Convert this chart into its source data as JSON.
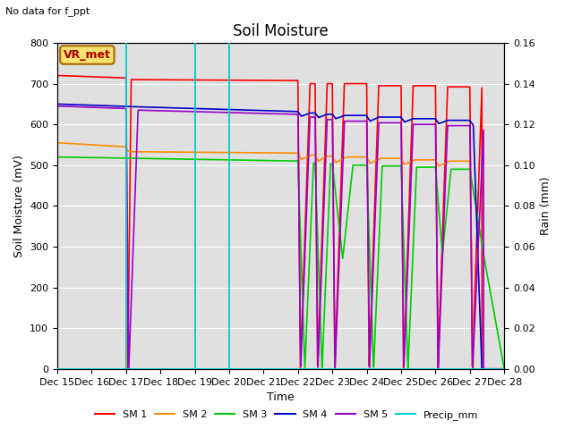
{
  "title": "Soil Moisture",
  "top_left_text": "No data for f_ppt",
  "ylabel_left": "Soil Moisture (mV)",
  "ylabel_right": "Rain (mm)",
  "xlabel": "Time",
  "ylim_left": [
    0,
    800
  ],
  "ylim_right": [
    0,
    0.16
  ],
  "background_color": "#e0e0e0",
  "figure_color": "#ffffff",
  "x_tick_labels": [
    "Dec 15",
    "Dec 16",
    "Dec 17",
    "Dec 18",
    "Dec 19",
    "Dec 20",
    "Dec 21",
    "Dec 22",
    "Dec 23",
    "Dec 24",
    "Dec 25",
    "Dec 26",
    "Dec 27",
    "Dec 28"
  ],
  "vr_met_label": "VR_met",
  "legend_entries": [
    "SM 1",
    "SM 2",
    "SM 3",
    "SM 4",
    "SM 5",
    "Precip_mm"
  ],
  "legend_colors": [
    "#ff0000",
    "#ff8c00",
    "#00cc00",
    "#0000cc",
    "#9900cc",
    "#00cccc"
  ],
  "sm1_color": "#ff0000",
  "sm2_color": "#ff8c00",
  "sm3_color": "#00cc00",
  "sm4_color": "#0000cc",
  "sm5_color": "#9900cc",
  "precip_color": "#00cccc",
  "yticks_left": [
    0,
    100,
    200,
    300,
    400,
    500,
    600,
    700,
    800
  ],
  "yticks_right": [
    0.0,
    0.02,
    0.04,
    0.06,
    0.08,
    0.1,
    0.12,
    0.14,
    0.16
  ]
}
